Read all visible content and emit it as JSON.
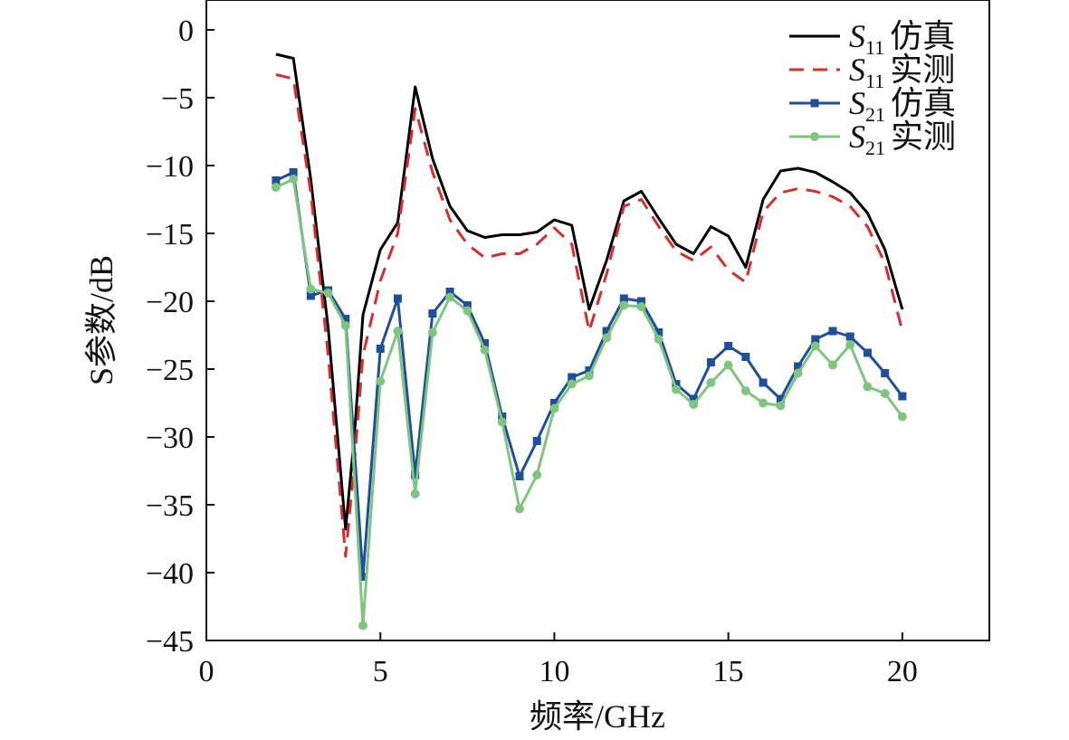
{
  "chart_data": {
    "type": "line",
    "xlabel": "频率/GHz",
    "ylabel": "S参数/dB",
    "xlim": [
      0,
      22.5
    ],
    "ylim": [
      -45,
      2.2
    ],
    "xticks": [
      0,
      5,
      10,
      15,
      20
    ],
    "yticks": [
      0,
      -5,
      -10,
      -15,
      -20,
      -25,
      -30,
      -35,
      -40,
      -45
    ],
    "legend_position": "top-right",
    "grid": false,
    "series": [
      {
        "name": "S11 仿真",
        "legend": {
          "symbol": "S",
          "subscript": "11",
          "suffix": "仿真"
        },
        "color": "#000000",
        "style": "solid",
        "marker": "none",
        "x": [
          2,
          2.5,
          3,
          3.5,
          4,
          4.25,
          4.5,
          5,
          5.5,
          6,
          6.5,
          7,
          7.5,
          8,
          8.5,
          9,
          9.5,
          10,
          10.5,
          11,
          11.5,
          12,
          12.5,
          13,
          13.5,
          14,
          14.5,
          15,
          15.5,
          16,
          16.5,
          17,
          17.5,
          18,
          18.5,
          19,
          19.5,
          20
        ],
        "y": [
          -1.8,
          -2.1,
          -11.0,
          -22.0,
          -36.8,
          -30.0,
          -21.0,
          -16.2,
          -14.2,
          -4.2,
          -9.5,
          -13.0,
          -14.8,
          -15.3,
          -15.1,
          -15.1,
          -14.9,
          -14.0,
          -14.4,
          -20.6,
          -17.0,
          -12.6,
          -11.9,
          -13.9,
          -15.8,
          -16.5,
          -14.5,
          -15.2,
          -17.5,
          -12.5,
          -10.4,
          -10.2,
          -10.5,
          -11.2,
          -12.0,
          -13.5,
          -16.2,
          -20.6
        ]
      },
      {
        "name": "S11 实测",
        "legend": {
          "symbol": "S",
          "subscript": "11",
          "suffix": "实测"
        },
        "color": "#d32f2f",
        "style": "dashed",
        "marker": "none",
        "x": [
          2,
          2.5,
          3,
          3.5,
          4,
          4.25,
          4.5,
          5,
          5.5,
          6,
          6.5,
          7,
          7.5,
          8,
          8.5,
          9,
          9.5,
          10,
          10.5,
          11,
          11.5,
          12,
          12.5,
          13,
          13.5,
          14,
          14.5,
          15,
          15.5,
          16,
          16.5,
          17,
          17.5,
          18,
          18.5,
          19,
          19.5,
          20
        ],
        "y": [
          -3.3,
          -3.6,
          -12.0,
          -24.0,
          -38.8,
          -32.0,
          -24.0,
          -18.5,
          -15.0,
          -5.8,
          -10.5,
          -14.0,
          -15.8,
          -16.8,
          -16.5,
          -16.5,
          -15.8,
          -14.6,
          -15.8,
          -22.2,
          -18.0,
          -13.0,
          -12.5,
          -14.5,
          -16.3,
          -17.0,
          -16.0,
          -17.7,
          -18.6,
          -13.4,
          -12.0,
          -11.7,
          -11.9,
          -12.3,
          -13.0,
          -14.5,
          -17.2,
          -22.2
        ]
      },
      {
        "name": "S21 仿真",
        "legend": {
          "symbol": "S",
          "subscript": "21",
          "suffix": "仿真"
        },
        "color": "#1f4e9b",
        "style": "solid",
        "marker": "square",
        "x": [
          2,
          2.5,
          3,
          3.5,
          4,
          4.5,
          5,
          5.5,
          6,
          6.5,
          7,
          7.5,
          8,
          8.5,
          9,
          9.5,
          10,
          10.5,
          11,
          11.5,
          12,
          12.5,
          13,
          13.5,
          14,
          14.5,
          15,
          15.5,
          16,
          16.5,
          17,
          17.5,
          18,
          18.5,
          19,
          19.5,
          20
        ],
        "y": [
          -11.1,
          -10.5,
          -19.6,
          -19.2,
          -21.3,
          -40.3,
          -23.5,
          -19.8,
          -32.8,
          -20.9,
          -19.3,
          -20.3,
          -23.1,
          -28.5,
          -32.9,
          -30.3,
          -27.5,
          -25.6,
          -25.1,
          -22.2,
          -19.8,
          -20.0,
          -22.3,
          -26.1,
          -27.2,
          -24.5,
          -23.3,
          -24.1,
          -26.0,
          -27.2,
          -24.8,
          -22.8,
          -22.2,
          -22.6,
          -23.8,
          -25.3,
          -27.0
        ]
      },
      {
        "name": "S21 实测",
        "legend": {
          "symbol": "S",
          "subscript": "21",
          "suffix": "实测"
        },
        "color": "#7fc47f",
        "style": "solid",
        "marker": "circle",
        "x": [
          2,
          2.5,
          3,
          3.5,
          4,
          4.5,
          5,
          5.5,
          6,
          6.5,
          7,
          7.5,
          8,
          8.5,
          9,
          9.5,
          10,
          10.5,
          11,
          11.5,
          12,
          12.5,
          13,
          13.5,
          14,
          14.5,
          15,
          15.5,
          16,
          16.5,
          17,
          17.5,
          18,
          18.5,
          19,
          19.5,
          20
        ],
        "y": [
          -11.6,
          -11.0,
          -19.1,
          -19.4,
          -21.8,
          -43.9,
          -25.9,
          -22.2,
          -34.2,
          -22.3,
          -19.7,
          -20.7,
          -23.6,
          -28.9,
          -35.3,
          -32.8,
          -27.9,
          -26.1,
          -25.5,
          -22.7,
          -20.3,
          -20.4,
          -22.8,
          -26.5,
          -27.6,
          -26.0,
          -24.7,
          -26.6,
          -27.5,
          -27.7,
          -25.3,
          -23.3,
          -24.7,
          -23.2,
          -26.3,
          -26.8,
          -28.5
        ]
      }
    ]
  }
}
